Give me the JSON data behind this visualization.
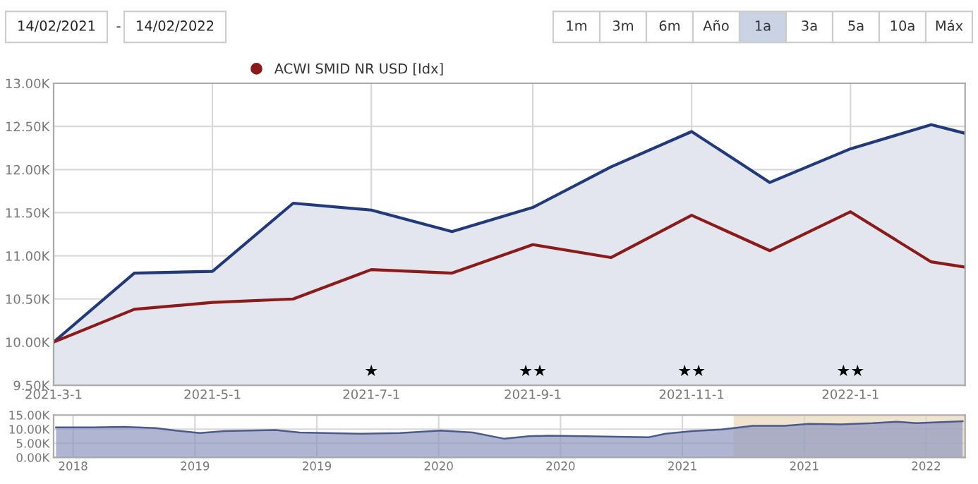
{
  "chart_data": [
    {
      "type": "other",
      "annotations": [
        "14/02/2021",
        "-",
        "14/02/2022",
        "1m",
        "3m",
        "6m",
        "Año",
        "1a",
        "3a",
        "5a",
        "10a",
        "Máx"
      ],
      "colors": [
        null,
        null,
        null,
        "#ffffff",
        "#ffffff",
        "#ffffff",
        "#ffffff",
        "#c9d3e3",
        "#ffffff",
        "#ffffff",
        "#ffffff",
        "#ffffff"
      ]
    },
    {
      "type": "line",
      "x": [
        "2021-03-01",
        "2021-04-01",
        "2021-05-01",
        "2021-06-01",
        "2021-07-01",
        "2021-08-01",
        "2021-09-01",
        "2021-10-01",
        "2021-11-01",
        "2021-12-01",
        "2022-01-01",
        "2022-02-01",
        "2022-02-14"
      ],
      "series": [
        {
          "type": "area",
          "color": "#233a7a",
          "values": [
            10000,
            10800,
            10820,
            11610,
            11530,
            11280,
            11560,
            12030,
            12440,
            11850,
            12240,
            12520,
            12420
          ]
        },
        {
          "name": "ACWI SMID NR USD [Idx]",
          "color": "#8b1a1a",
          "values": [
            10000,
            10380,
            10460,
            10500,
            10840,
            10800,
            11130,
            10980,
            11470,
            11060,
            11510,
            10930,
            10870
          ]
        }
      ],
      "xlim": [
        "2021-03-01",
        "2022-02-14"
      ],
      "xticks": [
        {
          "value": "2021-03-01",
          "label": "2021-3-1"
        },
        {
          "value": "2021-05-01",
          "label": "2021-5-1"
        },
        {
          "value": "2021-07-01",
          "label": "2021-7-1"
        },
        {
          "value": "2021-09-01",
          "label": "2021-9-1"
        },
        {
          "value": "2021-11-01",
          "label": "2021-11-1"
        },
        {
          "value": "2022-01-01",
          "label": "2022-1-1"
        }
      ],
      "ylim": [
        9500,
        13000
      ],
      "yticks": [
        {
          "value": 9500,
          "label": "9.50K"
        },
        {
          "value": 10000,
          "label": "10.00K"
        },
        {
          "value": 10500,
          "label": "10.50K"
        },
        {
          "value": 11000,
          "label": "11.00K"
        },
        {
          "value": 11500,
          "label": "11.50K"
        },
        {
          "value": 12000,
          "label": "12.00K"
        },
        {
          "value": 12500,
          "label": "12.50K"
        },
        {
          "value": 13000,
          "label": "13.00K"
        }
      ],
      "annotations": [
        "★",
        "★★",
        "★★",
        "★★"
      ],
      "grid": true,
      "legend": "top left",
      "marker": "none",
      "line_style": "solid"
    },
    {
      "type": "area",
      "color": "#4a5a8c",
      "x": [
        2017.93,
        2018.08,
        2018.21,
        2018.34,
        2018.42,
        2018.52,
        2018.62,
        2018.83,
        2018.93,
        2019.18,
        2019.34,
        2019.51,
        2019.64,
        2019.77,
        2019.87,
        2019.95,
        2020.1,
        2020.23,
        2020.36,
        2020.43,
        2020.54,
        2020.66,
        2020.79,
        2020.92,
        2021.02,
        2021.15,
        2021.28,
        2021.38,
        2021.46,
        2021.65
      ],
      "values": [
        10600,
        10600,
        10800,
        10400,
        9500,
        8600,
        9300,
        9700,
        8800,
        8400,
        8600,
        9500,
        8800,
        6600,
        7500,
        7700,
        7500,
        7300,
        7100,
        8400,
        9300,
        9900,
        11200,
        11200,
        11900,
        11700,
        12100,
        12600,
        12100,
        12800
      ],
      "xlim": [
        2017.92,
        2021.66
      ],
      "xticks": [
        {
          "value": 2018.0,
          "label": "2018"
        },
        {
          "value": 2018.5,
          "label": "2019"
        },
        {
          "value": 2019.0,
          "label": "2019"
        },
        {
          "value": 2019.5,
          "label": "2020"
        },
        {
          "value": 2020.0,
          "label": "2020"
        },
        {
          "value": 2020.5,
          "label": "2021"
        },
        {
          "value": 2021.0,
          "label": "2021"
        },
        {
          "value": 2021.5,
          "label": "2022"
        }
      ],
      "ylim": [
        0,
        15000
      ],
      "yticks": [
        {
          "value": 0,
          "label": "0.00K"
        },
        {
          "value": 5000,
          "label": "5.00K"
        },
        {
          "value": 10000,
          "label": "10.00K"
        },
        {
          "value": 15000,
          "label": "15.00K"
        }
      ],
      "bands": [
        {
          "axis": "x",
          "from": 2020.71,
          "to": 2021.66,
          "color": "#f1e4cf"
        }
      ],
      "grid": true
    }
  ]
}
